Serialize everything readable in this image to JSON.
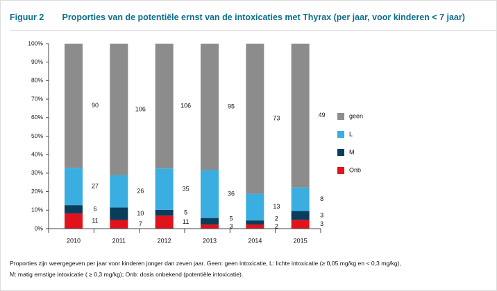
{
  "figure": {
    "label": "Figuur 2",
    "title": "Proporties van de potentiële ernst van de intoxicaties met Thyrax (per jaar, voor kinderen < 7 jaar)"
  },
  "footnote": {
    "line1": "Proporties zijn weergegeven per jaar voor kinderen jonger dan zeven jaar. Geen: geen intoxicatie, L: lichte intoxicatie (≥ 0,05 mg/kg en < 0,3 mg/kg),",
    "line2": "M: matig ernstige intoxicatie ( ≥ 0,3 mg/kg); Onb: dosis onbekend (potentiële intoxicatie)."
  },
  "chart_data": {
    "type": "bar",
    "stacked": "percent",
    "categories": [
      "2010",
      "2011",
      "2012",
      "2013",
      "2014",
      "2015"
    ],
    "series": [
      {
        "name": "Onb",
        "values": [
          11,
          7,
          11,
          3,
          2,
          3
        ],
        "color": "#e0121c"
      },
      {
        "name": "M",
        "values": [
          6,
          10,
          5,
          5,
          2,
          3
        ],
        "color": "#0a3d5c"
      },
      {
        "name": "L",
        "values": [
          27,
          26,
          35,
          36,
          13,
          8
        ],
        "color": "#3aaee0"
      },
      {
        "name": "geen",
        "values": [
          90,
          106,
          106,
          95,
          73,
          49
        ],
        "color": "#8c8c8c"
      }
    ],
    "legend_order": [
      "geen",
      "L",
      "M",
      "Onb"
    ],
    "yticks": [
      "0%",
      "10%",
      "20%",
      "30%",
      "40%",
      "50%",
      "60%",
      "70%",
      "80%",
      "90%",
      "100%"
    ],
    "ylim": [
      0,
      100
    ],
    "legend_position": "right",
    "grid": false
  }
}
